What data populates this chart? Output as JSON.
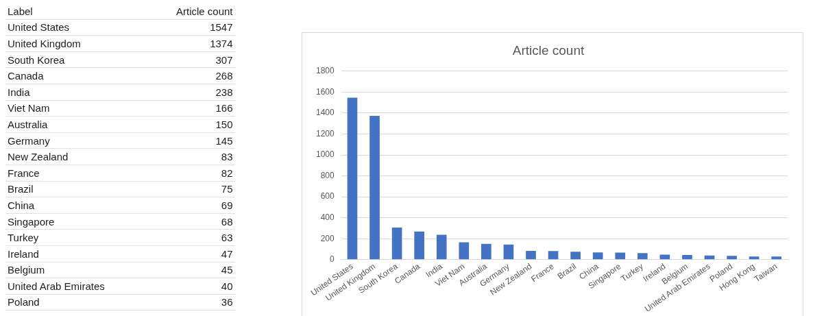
{
  "chart_data": [
    {
      "type": "other",
      "annotations": [
        "Label",
        "Article count",
        "United States",
        "1547",
        "United Kingdom",
        "1374",
        "South Korea",
        "307",
        "Canada",
        "268",
        "India",
        "238",
        "Viet Nam",
        "166",
        "Australia",
        "150",
        "Germany",
        "145",
        "New Zealand",
        "83",
        "France",
        "82",
        "Brazil",
        "75",
        "China",
        "69",
        "Singapore",
        "68",
        "Turkey",
        "63",
        "Ireland",
        "47",
        "Belgium",
        "45",
        "United Arab Emirates",
        "40",
        "Poland",
        "36"
      ]
    },
    {
      "type": "bar",
      "title": "Article count",
      "categories": [
        "United States",
        "United Kingdom",
        "South Korea",
        "Canada",
        "India",
        "Viet Nam",
        "Australia",
        "Germany",
        "New Zealand",
        "France",
        "Brazil",
        "China",
        "Singapore",
        "Turkey",
        "Ireland",
        "Belgium",
        "United Arab Emirates",
        "Poland",
        "Hong Kong",
        "Taiwan"
      ],
      "values": [
        1547,
        1374,
        307,
        268,
        238,
        166,
        150,
        145,
        83,
        82,
        75,
        69,
        68,
        63,
        47,
        45,
        40,
        36,
        30,
        30
      ],
      "color": "#4472c4",
      "ylim": [
        0,
        1800
      ],
      "yticks": [
        0,
        200,
        400,
        600,
        800,
        1000,
        1200,
        1400,
        1600,
        1800
      ],
      "grid": "y",
      "legend": false
    }
  ]
}
